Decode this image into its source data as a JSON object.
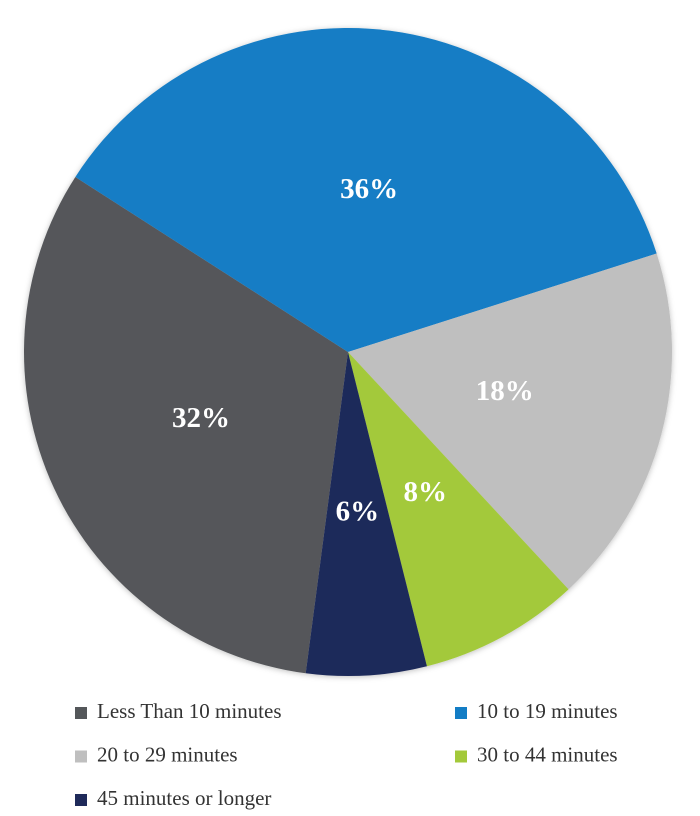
{
  "chart_data": {
    "type": "pie",
    "categories": [
      "Less Than 10 minutes",
      "10 to 19 minutes",
      "20 to 29 minutes",
      "30 to 44 minutes",
      "45 minutes or longer"
    ],
    "values": [
      32,
      36,
      18,
      8,
      6
    ],
    "value_labels": [
      "32%",
      "36%",
      "18%",
      "8%",
      "6%"
    ],
    "colors": [
      "#54575a",
      "#137dc5",
      "#bfbfbf",
      "#a3c93a",
      "#1f2a5a"
    ]
  }
}
